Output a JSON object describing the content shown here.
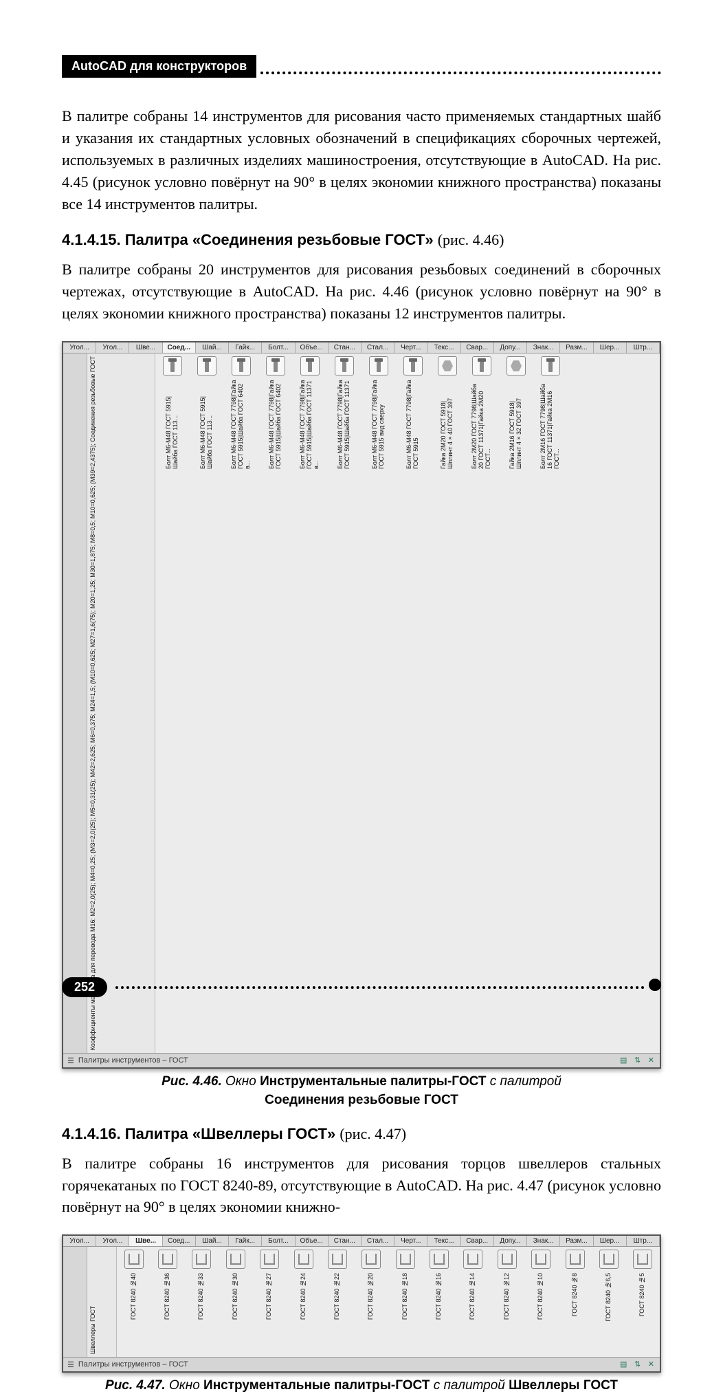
{
  "header": {
    "title": "AutoCAD для конструкторов"
  },
  "p1": "В палитре собраны 14 инструментов для рисования часто применяемых стандартных шайб и указания их стандартных условных обозначений в спецификациях сборочных чертежей, используемых в различных изделиях машиностроения, отсутствующие в AutoCAD. На рис. 4.45 (рисунок условно повёрнут на 90° в целях экономии книжного пространства) показаны все 14 инструментов палитры.",
  "s15": {
    "num": "4.1.4.15.",
    "name": "Палитра «Соединения резьбовые ГОСТ»",
    "ref": "(рис. 4.46)",
    "text": "В палитре собраны 20 инструментов для рисования резьбовых соединений в сборочных чертежах, отсутствующие в AutoCAD. На рис. 4.46 (рисунок условно повёрнут на 90° в целях экономии книжного пространства) показаны 12 инструментов палитры."
  },
  "s16": {
    "num": "4.1.4.16.",
    "name": "Палитра «Швеллеры ГОСТ»",
    "ref": "(рис. 4.47)",
    "text": "В палитре собраны 16 инструментов для рисования торцов швеллеров стальных горячекатаных по ГОСТ 8240-89, отсутствующие в AutoCAD. На рис. 4.47 (рисунок условно повёрнут на 90° в целях экономии книжно-"
  },
  "tabs": [
    "Угол...",
    "Угол...",
    "Шве...",
    "Соед...",
    "Шай...",
    "Гайк...",
    "Болт...",
    "Объе...",
    "Стан...",
    "Стал...",
    "Черт...",
    "Текс...",
    "Свар...",
    "Допу...",
    "Знак...",
    "Разм...",
    "Шер...",
    "Штр..."
  ],
  "tabsActive46": 3,
  "tabsActive47": 2,
  "fig46": {
    "statusbar": "Палитры инструментов – ГОСТ",
    "info": "Коэффициенты масштаба для перевода M16: M2=2,0(25); M4=0,25; (M3=2,0(25); M5=0,31(25); M42=2,625; M6=0,375; M24=1,5; (M10=0,625; M27=1,6(75); M20=1,25; M30=1,875; M8=0,5; M10=0,625; (M39=2,4375); Соединения резьбовые ГОСТ",
    "tools": [
      {
        "icon": "bolt",
        "label": "Болт М6-М48 ГОСТ 5915|Шайба ГОСТ 113..."
      },
      {
        "icon": "bolt",
        "label": "Болт М6-М48 ГОСТ 5915|Шайба ГОСТ 113..."
      },
      {
        "icon": "bolt",
        "label": "Болт М6-М48 ГОСТ 7798|Гайка ГОСТ 5915|Шайба ГОСТ 6402 в..."
      },
      {
        "icon": "bolt",
        "label": "Болт М6-М48 ГОСТ 7798|Гайка ГОСТ 5915|Шайба ГОСТ 6402"
      },
      {
        "icon": "bolt",
        "label": "Болт М6-М48 ГОСТ 7798|Гайка ГОСТ 5915|Шайба ГОСТ 11371 в..."
      },
      {
        "icon": "bolt",
        "label": "Болт М6-М48 ГОСТ 7798|Гайка ГОСТ 5915|Шайба ГОСТ 11371"
      },
      {
        "icon": "bolt",
        "label": "Болт М6-М48 ГОСТ 7798|Гайка ГОСТ 5915 вид сверху"
      },
      {
        "icon": "bolt",
        "label": "Болт М6-М48 ГОСТ 7798|Гайка ГОСТ 5915"
      },
      {
        "icon": "nut",
        "label": "Гайка 2М20 ГОСТ 5918|Шплинт 4×40 ГОСТ 397"
      },
      {
        "icon": "bolt",
        "label": "Болт 2М20 ГОСТ 7798|Шайба 20 ГОСТ 11371|Гайка 2М20 ГОСТ..."
      },
      {
        "icon": "nut",
        "label": "Гайка 2М16 ГОСТ 5918|Шплинт 4×32 ГОСТ 397"
      },
      {
        "icon": "bolt",
        "label": "Болт 2М16 ГОСТ 7798|Шайба 16 ГОСТ 11371|Гайка 2М16 ГОСТ..."
      }
    ],
    "caption_fig": "Рис. 4.46.",
    "caption_mid": "Окно",
    "caption_b1": "Инструментальные палитры-ГОСТ",
    "caption_mid2": "с палитрой",
    "caption_b2": "Соединения резьбовые ГОСТ"
  },
  "fig47": {
    "statusbar": "Палитры инструментов – ГОСТ",
    "section_label": "Швеллеры ГОСТ",
    "tools": [
      {
        "label": "ГОСТ 8240 №40"
      },
      {
        "label": "ГОСТ 8240 №36"
      },
      {
        "label": "ГОСТ 8240 №33"
      },
      {
        "label": "ГОСТ 8240 №30"
      },
      {
        "label": "ГОСТ 8240 №27"
      },
      {
        "label": "ГОСТ 8240 №24"
      },
      {
        "label": "ГОСТ 8240 №22"
      },
      {
        "label": "ГОСТ 8240 №20"
      },
      {
        "label": "ГОСТ 8240 №18"
      },
      {
        "label": "ГОСТ 8240 №16"
      },
      {
        "label": "ГОСТ 8240 №14"
      },
      {
        "label": "ГОСТ 8240 №12"
      },
      {
        "label": "ГОСТ 8240 №10"
      },
      {
        "label": "ГОСТ 8240 №8"
      },
      {
        "label": "ГОСТ 8240 №6,5"
      },
      {
        "label": "ГОСТ 8240 №5"
      }
    ],
    "caption_fig": "Рис. 4.47.",
    "caption_mid": "Окно",
    "caption_b1": "Инструментальные палитры-ГОСТ",
    "caption_mid2": "с палитрой",
    "caption_b2": "Швеллеры ГОСТ"
  },
  "page_number": "252"
}
